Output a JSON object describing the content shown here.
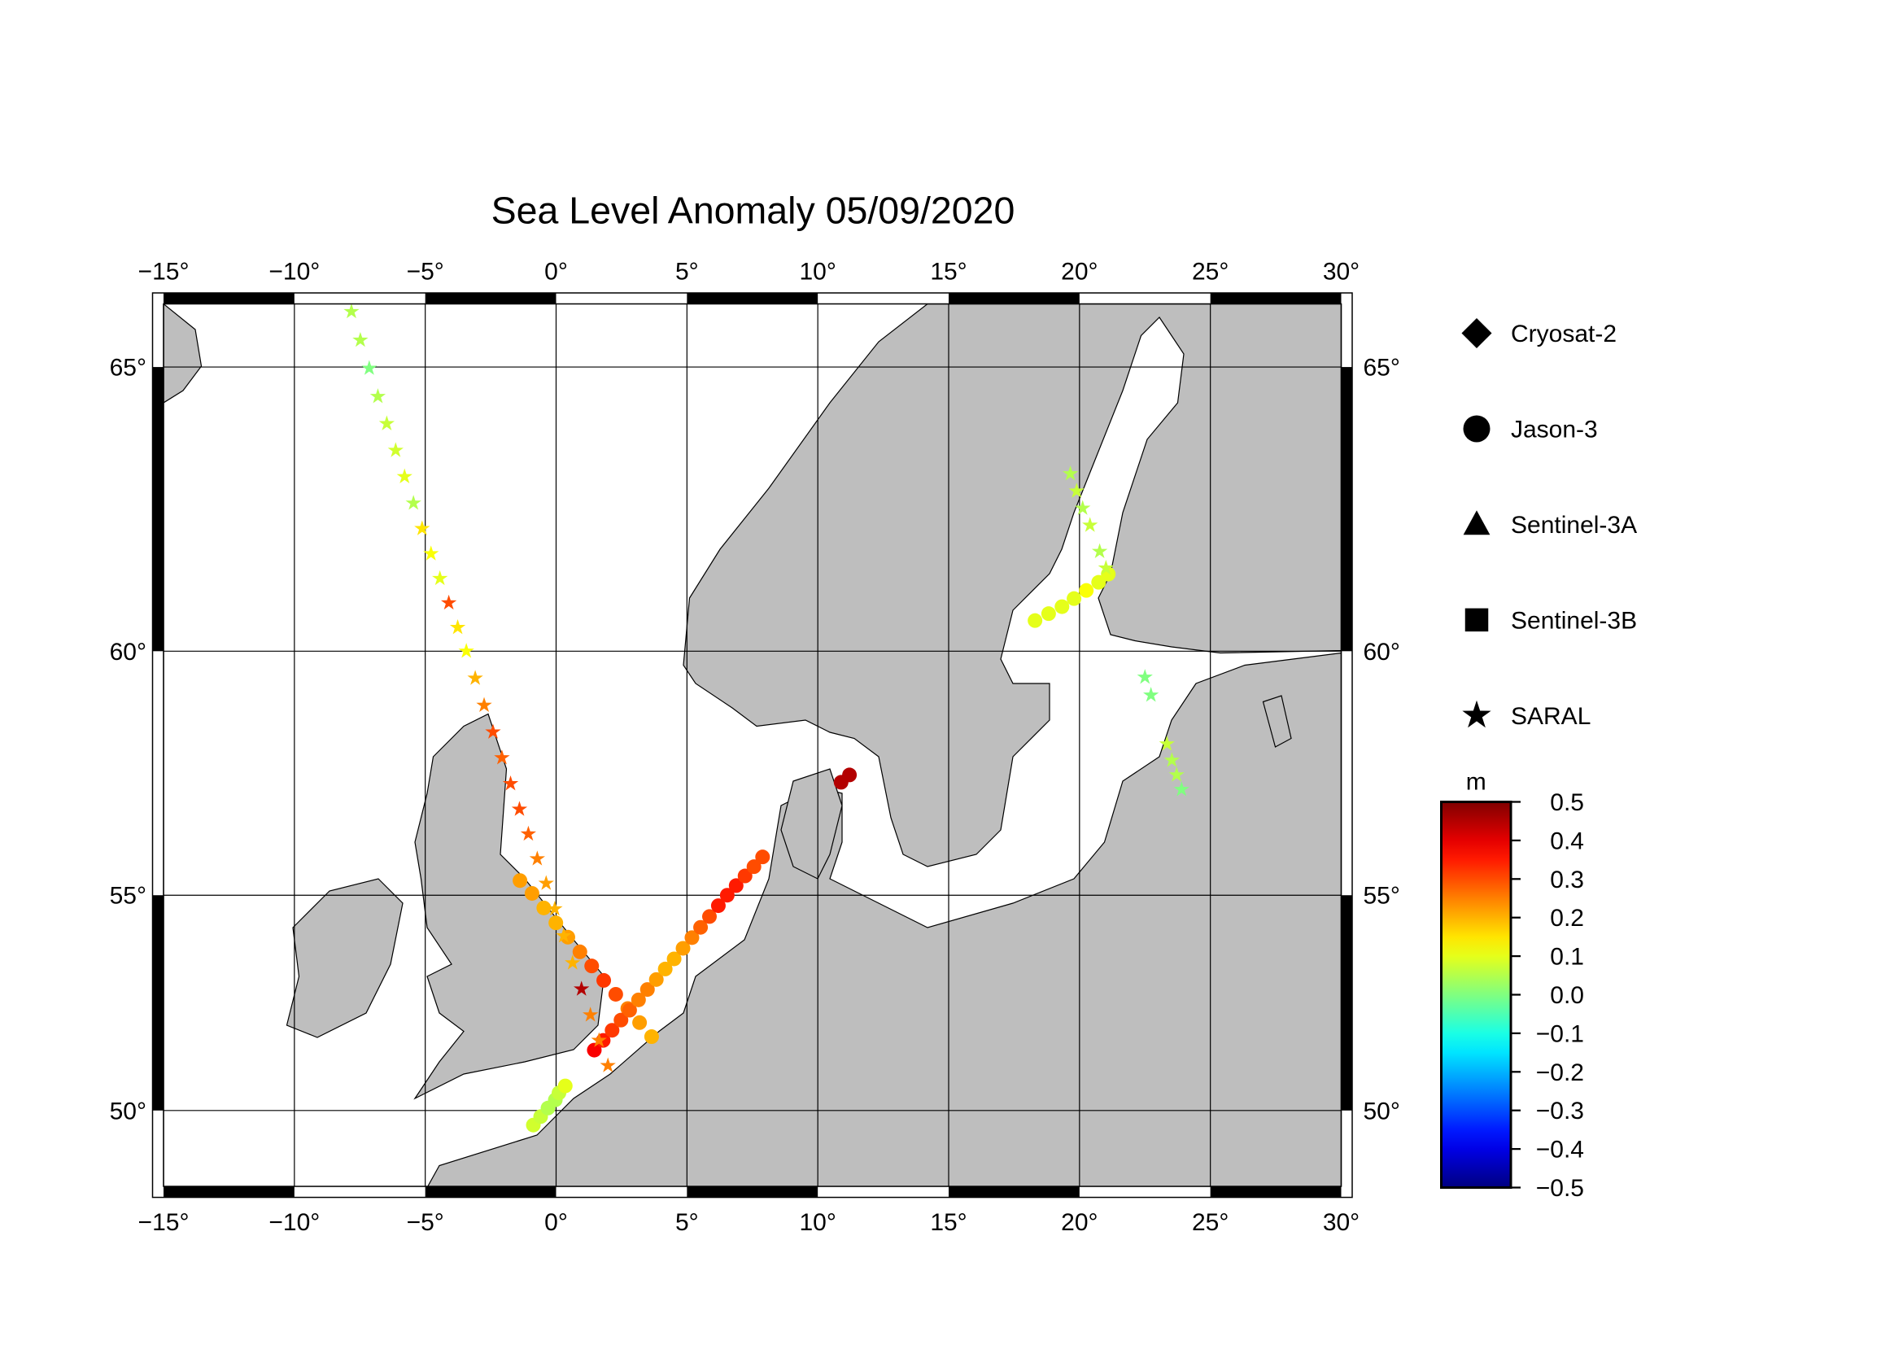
{
  "chart_data": {
    "type": "map",
    "title": "Sea Level Anomaly 05/09/2020",
    "xlim": [
      -15,
      30
    ],
    "ylim": [
      48.1,
      66
    ],
    "projection": "mercator",
    "grid": true,
    "land_color": "#bebebe",
    "xticks": [
      {
        "value": -15,
        "label": "−15°"
      },
      {
        "value": -10,
        "label": "−10°"
      },
      {
        "value": -5,
        "label": "−5°"
      },
      {
        "value": 0,
        "label": "0°"
      },
      {
        "value": 5,
        "label": "5°"
      },
      {
        "value": 10,
        "label": "10°"
      },
      {
        "value": 15,
        "label": "15°"
      },
      {
        "value": 20,
        "label": "20°"
      },
      {
        "value": 25,
        "label": "25°"
      },
      {
        "value": 30,
        "label": "30°"
      }
    ],
    "yticks": [
      {
        "value": 50,
        "label": "50°"
      },
      {
        "value": 55,
        "label": "55°"
      },
      {
        "value": 60,
        "label": "60°"
      },
      {
        "value": 65,
        "label": "65°"
      }
    ],
    "colorbar": {
      "label": "m",
      "colormap": "jet",
      "lim": [
        -0.5,
        0.5
      ],
      "ticks": [
        0.5,
        0.4,
        0.3,
        0.2,
        0.1,
        {
          "value": 0,
          "label": "0.0"
        },
        {
          "value": -0.1,
          "label": "−0.1"
        },
        {
          "value": -0.2,
          "label": "−0.2"
        },
        {
          "value": -0.3,
          "label": "−0.3"
        },
        {
          "value": -0.4,
          "label": "−0.4"
        },
        {
          "value": -0.5,
          "label": "−0.5"
        }
      ]
    },
    "series": [
      {
        "name": "Cryosat-2",
        "marker": "diamond",
        "x": [],
        "y": [],
        "values": []
      },
      {
        "name": "Jason-3",
        "marker": "circle",
        "x": [
          -1.38,
          -0.92,
          -0.47,
          -0.01,
          0.45,
          0.91,
          1.36,
          1.82,
          2.28,
          2.74,
          3.19,
          3.65,
          1.46,
          1.8,
          2.14,
          2.48,
          2.81,
          3.15,
          3.49,
          3.83,
          4.17,
          4.51,
          4.85,
          5.19,
          5.52,
          5.86,
          6.2,
          6.54,
          6.88,
          7.22,
          7.56,
          7.89,
          -0.87,
          -0.59,
          -0.31,
          -0.03,
          0.11,
          0.35,
          10.89,
          11.21,
          18.3,
          18.82,
          19.33,
          19.79,
          20.26,
          20.73,
          21.1
        ],
        "y": [
          55.32,
          55.04,
          54.72,
          54.39,
          54.07,
          53.74,
          53.42,
          53.09,
          52.77,
          52.44,
          52.11,
          51.78,
          51.46,
          51.69,
          51.93,
          52.17,
          52.4,
          52.64,
          52.88,
          53.11,
          53.35,
          53.58,
          53.82,
          54.06,
          54.29,
          54.53,
          54.77,
          55.0,
          55.21,
          55.42,
          55.62,
          55.83,
          49.64,
          49.85,
          50.06,
          50.26,
          50.43,
          50.6,
          57.4,
          57.55,
          60.58,
          60.71,
          60.84,
          60.99,
          61.14,
          61.29,
          61.44
        ],
        "values": [
          0.22,
          0.22,
          0.2,
          0.2,
          0.22,
          0.25,
          0.3,
          0.32,
          0.3,
          0.25,
          0.22,
          0.2,
          0.38,
          0.35,
          0.32,
          0.3,
          0.28,
          0.25,
          0.25,
          0.22,
          0.2,
          0.2,
          0.22,
          0.25,
          0.28,
          0.3,
          0.35,
          0.35,
          0.35,
          0.32,
          0.3,
          0.3,
          0.08,
          0.07,
          0.05,
          0.05,
          0.07,
          0.1,
          0.45,
          0.45,
          0.1,
          0.1,
          0.1,
          0.1,
          0.12,
          0.1,
          0.1
        ]
      },
      {
        "name": "Sentinel-3A",
        "marker": "triangle",
        "x": [],
        "y": [],
        "values": []
      },
      {
        "name": "Sentinel-3B",
        "marker": "square",
        "x": [],
        "y": [],
        "values": []
      },
      {
        "name": "SARAL",
        "marker": "star",
        "x": [
          -7.82,
          -7.48,
          -7.14,
          -6.81,
          -6.47,
          -6.13,
          -5.79,
          -5.45,
          -5.12,
          -4.78,
          -4.44,
          -4.1,
          -3.76,
          -3.43,
          -3.09,
          -2.75,
          -2.41,
          -2.07,
          -1.74,
          -1.4,
          -1.06,
          -0.72,
          -0.38,
          -0.05,
          0.29,
          0.63,
          0.97,
          1.31,
          1.64,
          1.98,
          19.65,
          19.89,
          20.12,
          20.4,
          20.77,
          21.01,
          22.5,
          22.73,
          23.34,
          23.53,
          23.71,
          23.9
        ],
        "y": [
          65.88,
          65.43,
          64.98,
          64.52,
          64.07,
          63.62,
          63.17,
          62.71,
          62.26,
          61.81,
          61.36,
          60.91,
          60.45,
          60.0,
          59.48,
          58.95,
          58.42,
          57.9,
          57.37,
          56.84,
          56.32,
          55.79,
          55.26,
          54.7,
          54.1,
          53.49,
          52.89,
          52.29,
          51.69,
          51.09,
          63.22,
          62.92,
          62.62,
          62.32,
          61.85,
          61.55,
          59.5,
          59.15,
          58.18,
          57.85,
          57.55,
          57.25
        ],
        "values": [
          0.05,
          0.05,
          0.0,
          0.05,
          0.07,
          0.08,
          0.1,
          0.05,
          0.15,
          0.12,
          0.1,
          0.3,
          0.15,
          0.12,
          0.2,
          0.25,
          0.3,
          0.28,
          0.3,
          0.3,
          0.28,
          0.25,
          0.22,
          0.2,
          0.2,
          0.2,
          0.45,
          0.25,
          0.25,
          0.25,
          0.05,
          0.07,
          0.05,
          0.07,
          0.05,
          0.07,
          0.0,
          0.0,
          0.07,
          0.05,
          0.05,
          0.0
        ]
      }
    ]
  }
}
